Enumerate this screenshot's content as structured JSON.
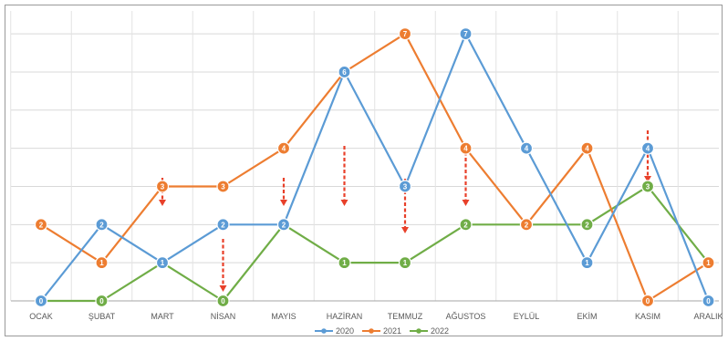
{
  "chart_data": {
    "type": "line",
    "categories": [
      "OCAK",
      "ŞUBAT",
      "MART",
      "NİSAN",
      "MAYIS",
      "HAZİRAN",
      "TEMMUZ",
      "AĞUSTOS",
      "EYLÜL",
      "EKİM",
      "KASIM",
      "ARALIK"
    ],
    "series": [
      {
        "name": "2020",
        "color": "#5b9bd5",
        "values": [
          0,
          2,
          1,
          2,
          2,
          6,
          3,
          7,
          4,
          1,
          4,
          0
        ]
      },
      {
        "name": "2021",
        "color": "#ed7d31",
        "values": [
          2,
          1,
          3,
          3,
          4,
          6,
          7,
          4,
          2,
          4,
          0,
          1
        ]
      },
      {
        "name": "2022",
        "color": "#70ad47",
        "values": [
          0,
          0,
          1,
          0,
          2,
          1,
          1,
          2,
          2,
          2,
          3,
          1
        ]
      }
    ],
    "ylim": [
      0,
      7.6
    ],
    "grid": true,
    "legend_position": "bottom",
    "annotations": {
      "type": "red dashed down arrows",
      "color": "#e8402a",
      "categories": [
        "MART",
        "NİSAN",
        "MAYIS",
        "HAZİRAN",
        "TEMMUZ",
        "AĞUSTOS",
        "KASIM"
      ]
    }
  }
}
